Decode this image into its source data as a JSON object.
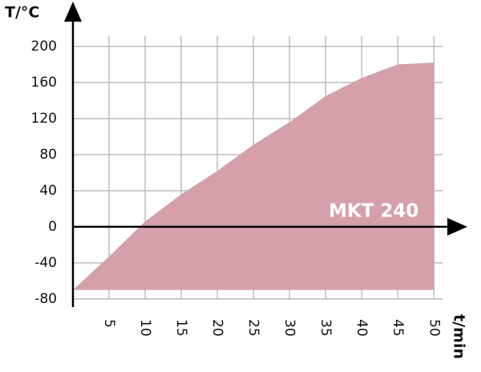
{
  "chart_data": {
    "type": "area",
    "y_label": "T/°C",
    "x_label": "t/min",
    "annotation": "MKT 240",
    "x": [
      0,
      5,
      10,
      15,
      20,
      25,
      30,
      35,
      40,
      45,
      50
    ],
    "values": [
      -70,
      -33,
      6,
      36,
      62,
      91,
      116,
      145,
      165,
      180,
      182
    ],
    "color": "#d5a0a9",
    "xlim": [
      0,
      54.3
    ],
    "ylim": [
      -89,
      247
    ],
    "xticks": [
      5,
      10,
      15,
      20,
      25,
      30,
      35,
      40,
      45,
      50
    ],
    "yticks": [
      -80,
      -40,
      0,
      40,
      80,
      120,
      160,
      200
    ],
    "grid": true
  }
}
